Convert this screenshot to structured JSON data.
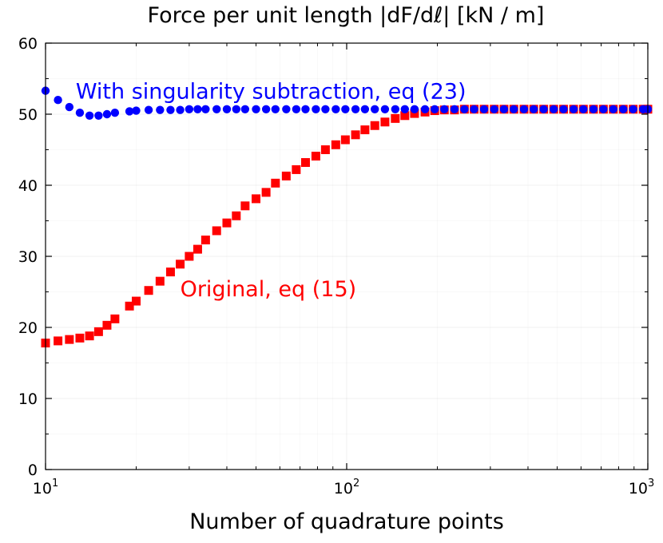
{
  "chart_data": {
    "type": "scatter",
    "title": "Force per unit length |dF/dℓ| [kN / m]",
    "xlabel": "Number of quadrature points",
    "ylabel": "",
    "xscale": "log",
    "xlim": [
      10,
      1000
    ],
    "ylim": [
      0,
      60
    ],
    "grid": true,
    "x_ticks": [
      {
        "base": "10",
        "exp": "1",
        "value": 10
      },
      {
        "base": "10",
        "exp": "2",
        "value": 100
      },
      {
        "base": "10",
        "exp": "3",
        "value": 1000
      }
    ],
    "y_ticks": [
      {
        "label": "0",
        "value": 0
      },
      {
        "label": "10",
        "value": 10
      },
      {
        "label": "20",
        "value": 20
      },
      {
        "label": "30",
        "value": 30
      },
      {
        "label": "40",
        "value": 40
      },
      {
        "label": "50",
        "value": 50
      },
      {
        "label": "60",
        "value": 60
      }
    ],
    "series": [
      {
        "color": "#ff0000",
        "marker": "square",
        "annotation": {
          "text": "Original, eq (15)",
          "anchor_x": 28,
          "anchor_y": 25.5
        },
        "x": [
          10,
          11,
          12,
          13,
          14,
          15,
          16,
          17,
          19,
          20,
          22,
          24,
          26,
          28,
          30,
          32,
          34,
          37,
          40,
          43,
          46,
          50,
          54,
          58,
          63,
          68,
          73,
          79,
          85,
          92,
          99,
          107,
          115,
          124,
          134,
          145,
          156,
          168,
          182,
          196,
          211,
          228,
          246,
          265,
          286,
          309,
          333,
          359,
          388,
          418,
          451,
          487,
          525,
          567,
          611,
          660,
          712,
          768,
          829,
          894,
          965,
          1000
        ],
        "y": [
          17.8,
          18.1,
          18.3,
          18.5,
          18.8,
          19.4,
          20.3,
          21.2,
          23.0,
          23.7,
          25.2,
          26.5,
          27.8,
          28.9,
          30.0,
          31.0,
          32.3,
          33.6,
          34.7,
          35.7,
          37.1,
          38.1,
          39.0,
          40.3,
          41.3,
          42.2,
          43.2,
          44.1,
          45.0,
          45.7,
          46.4,
          47.1,
          47.8,
          48.4,
          48.9,
          49.4,
          49.8,
          50.1,
          50.3,
          50.5,
          50.6,
          50.6,
          50.7,
          50.7,
          50.7,
          50.7,
          50.7,
          50.7,
          50.7,
          50.7,
          50.7,
          50.7,
          50.7,
          50.7,
          50.7,
          50.7,
          50.7,
          50.7,
          50.7,
          50.7,
          50.7,
          50.7
        ]
      },
      {
        "color": "#0000ff",
        "marker": "circle",
        "annotation": {
          "text": "With singularity subtraction, eq (23)",
          "anchor_x": 12.6,
          "anchor_y": 53.3
        },
        "x": [
          10,
          11,
          12,
          13,
          14,
          15,
          16,
          17,
          19,
          20,
          22,
          24,
          26,
          28,
          30,
          32,
          34,
          37,
          40,
          43,
          46,
          50,
          54,
          58,
          63,
          68,
          73,
          79,
          85,
          92,
          99,
          107,
          115,
          124,
          134,
          145,
          156,
          168,
          182,
          196,
          211,
          228,
          246,
          265,
          286,
          309,
          333,
          359,
          388,
          418,
          451,
          487,
          525,
          567,
          611,
          660,
          712,
          768,
          829,
          894,
          965,
          1000
        ],
        "y": [
          53.3,
          52.0,
          51.0,
          50.2,
          49.8,
          49.8,
          50.0,
          50.2,
          50.4,
          50.5,
          50.6,
          50.6,
          50.6,
          50.6,
          50.7,
          50.7,
          50.7,
          50.7,
          50.7,
          50.7,
          50.7,
          50.7,
          50.7,
          50.7,
          50.7,
          50.7,
          50.7,
          50.7,
          50.7,
          50.7,
          50.7,
          50.7,
          50.7,
          50.7,
          50.7,
          50.7,
          50.7,
          50.7,
          50.7,
          50.7,
          50.7,
          50.7,
          50.7,
          50.7,
          50.7,
          50.7,
          50.7,
          50.7,
          50.7,
          50.7,
          50.7,
          50.7,
          50.7,
          50.7,
          50.7,
          50.7,
          50.7,
          50.7,
          50.7,
          50.7,
          50.7,
          50.7
        ]
      }
    ]
  }
}
